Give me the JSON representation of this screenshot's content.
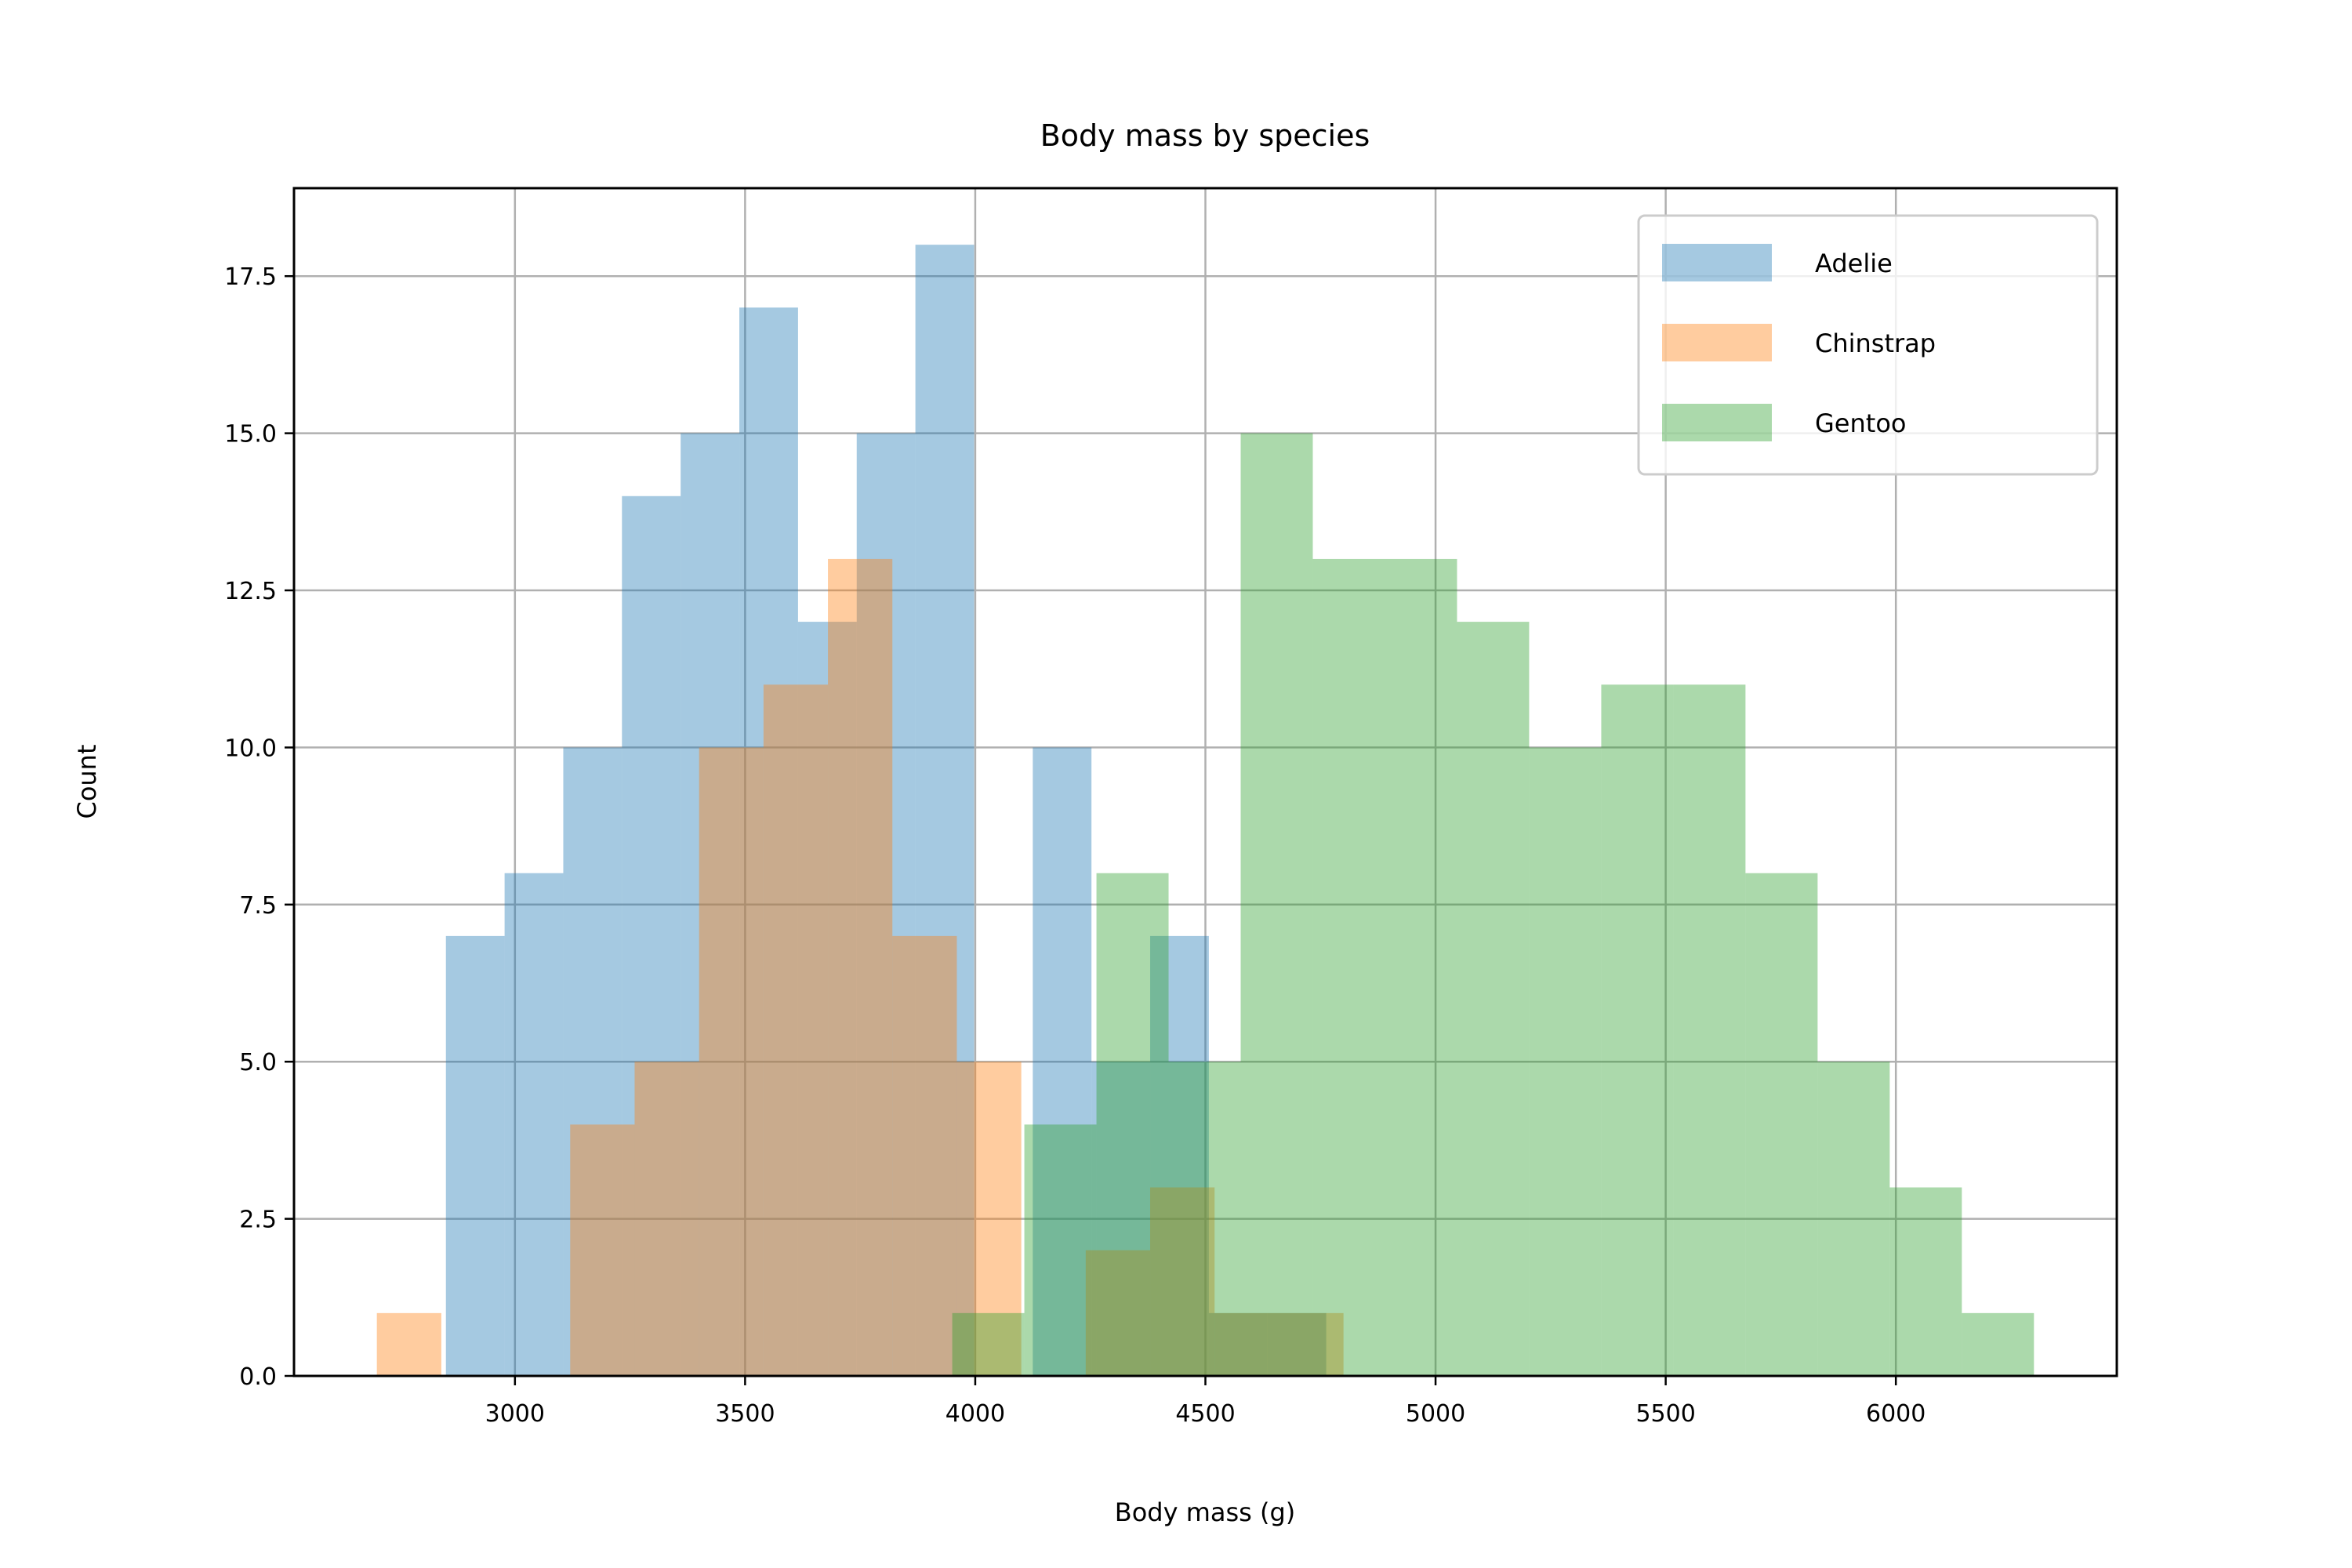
{
  "chart_data": {
    "type": "histogram",
    "title": "Body mass by species",
    "xlabel": "Body mass (g)",
    "ylabel": "Count",
    "xlim": [
      2520,
      6480
    ],
    "ylim": [
      0,
      18.9
    ],
    "xticks": [
      3000,
      3500,
      4000,
      4500,
      5000,
      5500,
      6000
    ],
    "xtick_labels": [
      "3000",
      "3500",
      "4000",
      "4500",
      "5000",
      "5500",
      "6000"
    ],
    "yticks": [
      0,
      2.5,
      5,
      7.5,
      10,
      12.5,
      15,
      17.5
    ],
    "ytick_labels": [
      "0.0",
      "2.5",
      "5.0",
      "7.5",
      "10.0",
      "12.5",
      "15.0",
      "17.5"
    ],
    "grid": true,
    "legend_position": "top-right",
    "bar_opacity": 0.4,
    "series": [
      {
        "name": "Adelie",
        "color": "#1f77b4",
        "bin_edges": [
          2850,
          2977.5,
          3105,
          3232.5,
          3360,
          3487.5,
          3615,
          3742.5,
          3870,
          3997.5,
          4125,
          4252.5,
          4380,
          4507.5,
          4635,
          4762.5
        ],
        "counts": [
          7,
          8,
          10,
          14,
          15,
          17,
          12,
          15,
          18,
          0,
          10,
          5,
          7,
          1,
          1
        ]
      },
      {
        "name": "Chinstrap",
        "color": "#ff7f0e",
        "bin_edges": [
          2700,
          2840,
          2980,
          3120,
          3260,
          3400,
          3540,
          3680,
          3820,
          3960,
          4100,
          4240,
          4380,
          4520,
          4660,
          4800
        ],
        "counts": [
          1,
          0,
          0,
          4,
          5,
          10,
          11,
          13,
          7,
          5,
          0,
          2,
          3,
          1,
          1
        ]
      },
      {
        "name": "Gentoo",
        "color": "#2ca02c",
        "bin_edges": [
          3950,
          4106.67,
          4263.33,
          4420,
          4576.67,
          4733.33,
          4890,
          5046.67,
          5203.33,
          5360,
          5516.67,
          5673.33,
          5830,
          5986.67,
          6143.33,
          6300
        ],
        "counts": [
          1,
          4,
          8,
          5,
          15,
          13,
          13,
          12,
          10,
          11,
          11,
          8,
          5,
          3,
          1
        ]
      }
    ]
  }
}
